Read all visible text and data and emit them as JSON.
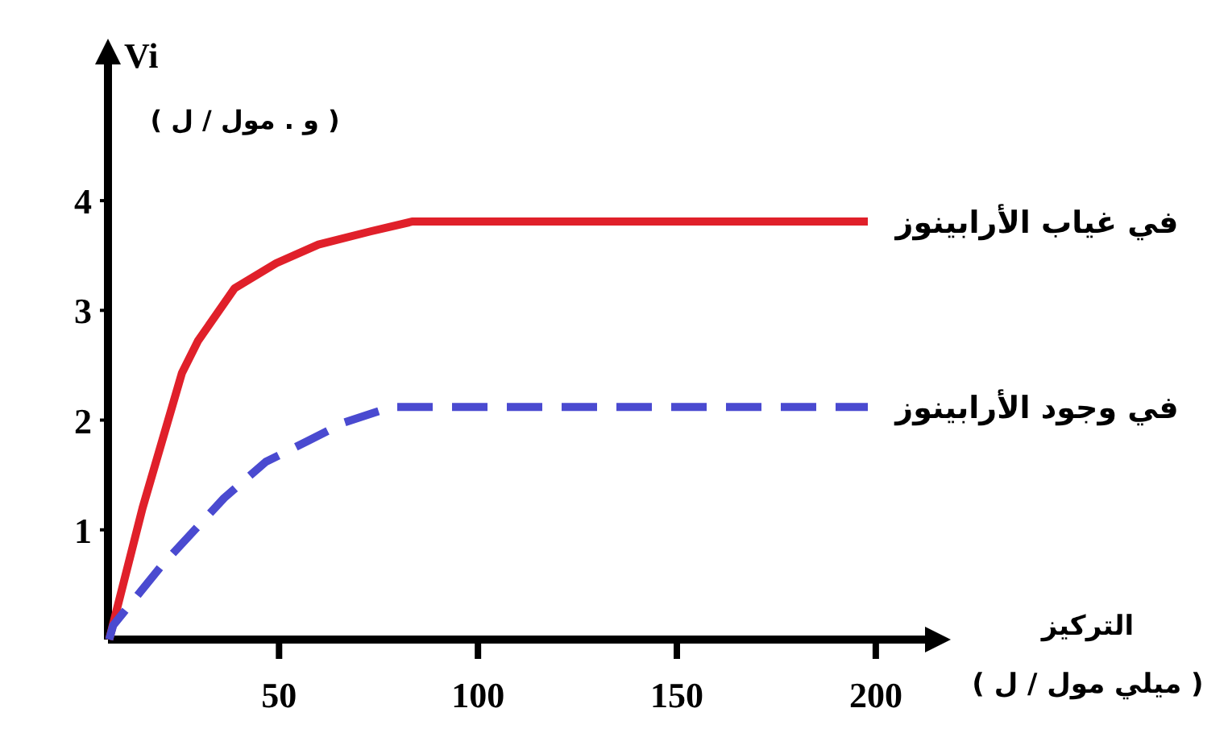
{
  "chart_data": {
    "type": "line",
    "ylabel": "Vi\n( و . مول / ل )",
    "xlabel": "التركيز\n( ميلي مول / ل )",
    "xlim": [
      7,
      214
    ],
    "ylim": [
      0,
      5.3
    ],
    "xticks": [
      50,
      100,
      150,
      200
    ],
    "yticks": [
      1,
      2,
      3,
      4
    ],
    "series": [
      {
        "name": "في غياب الأرابينوز",
        "color": "#e0202a",
        "line_style": "solid",
        "x": [
          7.3,
          15.7,
          25.6,
          29.6,
          38.8,
          49.3,
          59.9,
          73,
          83.6,
          198
        ],
        "values": [
          0,
          1.2,
          2.43,
          2.72,
          3.2,
          3.43,
          3.6,
          3.72,
          3.81,
          3.81
        ]
      },
      {
        "name": "في وجود الأرابينوز",
        "color": "#4a4ad0",
        "line_style": "dashed",
        "x": [
          7.3,
          8.3,
          20.4,
          36.2,
          46.7,
          57.2,
          66.5,
          78.3,
          198
        ],
        "values": [
          0,
          0.13,
          0.67,
          1.29,
          1.62,
          1.81,
          1.98,
          2.12,
          2.12
        ]
      }
    ]
  }
}
